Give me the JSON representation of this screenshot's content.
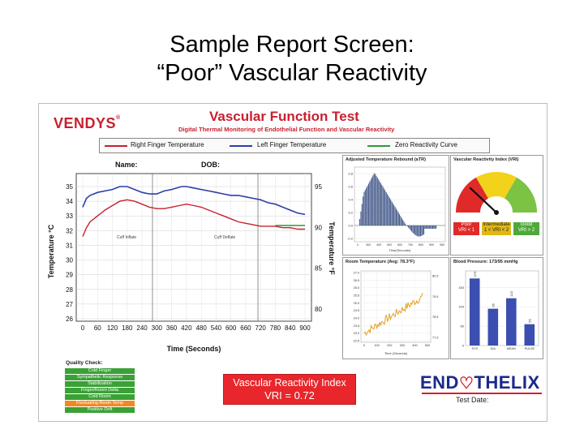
{
  "slide": {
    "title_line1": "Sample Report Screen:",
    "title_line2": "“Poor” Vascular Reactivity"
  },
  "report": {
    "brand": "VENDYS",
    "brand_mark": "®",
    "title": "Vascular Function Test",
    "subtitle": "Digital Thermal Monitoring of Endothelial Function and Vascular Reactivity",
    "legend": {
      "right": "Right Finger Temperature",
      "left": "Left Finger Temperature",
      "zero": "Zero Reactivity Curve"
    },
    "colors": {
      "right": "#c8202f",
      "left": "#2b3faa",
      "zero": "#2e9a3a",
      "brand_red": "#c8202f",
      "vri_red": "#e8262b",
      "qc_green": "#3aa136",
      "qc_orange": "#f08a1c"
    },
    "patient": {
      "name_label": "Name:",
      "dob_label": "DOB:"
    },
    "main_chart": {
      "y_left_label": "Temperature °C",
      "y_right_label": "Temperature °F",
      "x_label": "Time (Seconds)",
      "y_left_ticks": [
        "35",
        "34",
        "33",
        "32",
        "31",
        "30",
        "29",
        "28",
        "27",
        "26"
      ],
      "y_right_ticks": [
        "95",
        "90",
        "85",
        "80"
      ],
      "x_ticks": [
        "0",
        "60",
        "120",
        "180",
        "240",
        "300",
        "360",
        "420",
        "480",
        "540",
        "600",
        "660",
        "720",
        "780",
        "840",
        "900"
      ],
      "annot_inflate": "Cuff Inflate",
      "annot_deflate": "Cuff Deflate"
    },
    "rebound": {
      "title": "Adjusted Temperature Rebound (aTR)",
      "x_label": "Time(Seconds)",
      "y_ticks": [
        "0.8",
        "0.6",
        "0.4",
        "0.2",
        "0.0",
        "-0.2"
      ],
      "x_ticks": [
        "0",
        "300",
        "400",
        "500",
        "600",
        "700",
        "800",
        "900",
        "950"
      ]
    },
    "vri_gauge": {
      "title": "Vascular Reactivity Index (VRI)",
      "poor": "Poor\nVRI < 1",
      "intermediate": "Intermediate\n1 < VRI < 2",
      "good": "Good\nVRI > 2",
      "value": 0.72
    },
    "room_temp": {
      "title": "Room Temperature (Avg: 78.3°F)",
      "x_label": "Time (Seconds)",
      "y_left_ticks": [
        "27.0",
        "26.5",
        "26.0",
        "25.5",
        "25.0",
        "24.5",
        "24.0",
        "23.5",
        "23.0",
        "22.5"
      ],
      "y_right_ticks": [
        "80.5",
        "79.5",
        "78.5",
        "77.5"
      ],
      "x_ticks": [
        "0",
        "100",
        "200",
        "300",
        "400",
        "500"
      ]
    },
    "blood_pressure": {
      "title": "Blood Pressure: 173/95 mmHg",
      "y_ticks": [
        "150",
        "100",
        "50",
        "0"
      ],
      "categories": [
        "SYS",
        "DIA",
        "MEAN",
        "PULSE"
      ],
      "values": [
        173,
        95,
        122,
        55
      ],
      "value_labels": [
        "173",
        "95",
        "122",
        "55"
      ]
    },
    "quality": {
      "title": "Quality Check:",
      "items": [
        {
          "label": "Cold Finger",
          "status": "ok"
        },
        {
          "label": "Sympathetic Response",
          "status": "ok"
        },
        {
          "label": "Stabilization",
          "status": "ok"
        },
        {
          "label": "Finger/Room Delta",
          "status": "ok"
        },
        {
          "label": "Cold Room",
          "status": "ok"
        },
        {
          "label": "Fluctuating Room Temp",
          "status": "warn"
        },
        {
          "label": "Positive Drift",
          "status": "ok"
        }
      ]
    },
    "vri_result": {
      "line1": "Vascular Reactivity Index",
      "line2": "VRI = 0.72"
    },
    "company": {
      "name_left": "END",
      "name_right": "THELIX",
      "test_date_label": "Test Date:"
    }
  }
}
